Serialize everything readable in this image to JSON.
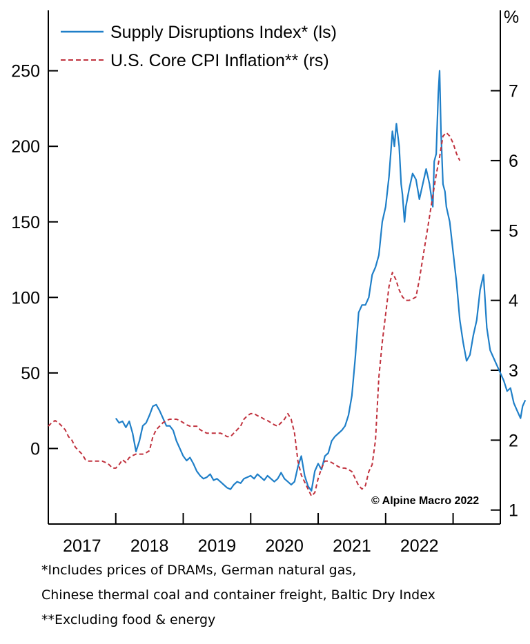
{
  "chart_data": {
    "type": "line",
    "x_ticks": [
      "2017",
      "2018",
      "2019",
      "2020",
      "2021",
      "2022"
    ],
    "y_left": {
      "ticks": [
        "0",
        "50",
        "100",
        "150",
        "200",
        "250"
      ],
      "range": [
        -50,
        290
      ]
    },
    "y_right": {
      "unit": "%",
      "ticks": [
        "1",
        "2",
        "3",
        "4",
        "5",
        "6",
        "7"
      ],
      "range": [
        0.8,
        8.15
      ]
    },
    "series": [
      {
        "name": "Supply Disruptions Index* (ls)",
        "axis": "left",
        "color": "#1f7fc8",
        "style": "solid",
        "points": [
          [
            2017.5,
            20
          ],
          [
            2017.55,
            17
          ],
          [
            2017.6,
            18
          ],
          [
            2017.65,
            14
          ],
          [
            2017.7,
            18
          ],
          [
            2017.75,
            10
          ],
          [
            2017.8,
            -2
          ],
          [
            2017.85,
            5
          ],
          [
            2017.9,
            15
          ],
          [
            2017.95,
            17
          ],
          [
            2018.0,
            22
          ],
          [
            2018.05,
            28
          ],
          [
            2018.1,
            29
          ],
          [
            2018.15,
            25
          ],
          [
            2018.2,
            20
          ],
          [
            2018.25,
            15
          ],
          [
            2018.3,
            15
          ],
          [
            2018.35,
            12
          ],
          [
            2018.4,
            5
          ],
          [
            2018.45,
            0
          ],
          [
            2018.5,
            -5
          ],
          [
            2018.55,
            -8
          ],
          [
            2018.6,
            -6
          ],
          [
            2018.65,
            -10
          ],
          [
            2018.7,
            -15
          ],
          [
            2018.75,
            -18
          ],
          [
            2018.8,
            -20
          ],
          [
            2018.85,
            -19
          ],
          [
            2018.9,
            -17
          ],
          [
            2018.95,
            -21
          ],
          [
            2019.0,
            -20
          ],
          [
            2019.05,
            -22
          ],
          [
            2019.1,
            -24
          ],
          [
            2019.15,
            -26
          ],
          [
            2019.2,
            -27
          ],
          [
            2019.25,
            -24
          ],
          [
            2019.3,
            -22
          ],
          [
            2019.35,
            -23
          ],
          [
            2019.4,
            -20
          ],
          [
            2019.45,
            -19
          ],
          [
            2019.5,
            -18
          ],
          [
            2019.55,
            -20
          ],
          [
            2019.6,
            -17
          ],
          [
            2019.65,
            -19
          ],
          [
            2019.7,
            -21
          ],
          [
            2019.75,
            -18
          ],
          [
            2019.8,
            -20
          ],
          [
            2019.85,
            -22
          ],
          [
            2019.9,
            -20
          ],
          [
            2019.95,
            -16
          ],
          [
            2020.0,
            -20
          ],
          [
            2020.05,
            -22
          ],
          [
            2020.1,
            -24
          ],
          [
            2020.15,
            -22
          ],
          [
            2020.2,
            -12
          ],
          [
            2020.25,
            -5
          ],
          [
            2020.3,
            -18
          ],
          [
            2020.35,
            -25
          ],
          [
            2020.4,
            -28
          ],
          [
            2020.45,
            -15
          ],
          [
            2020.5,
            -10
          ],
          [
            2020.55,
            -14
          ],
          [
            2020.6,
            -5
          ],
          [
            2020.65,
            -3
          ],
          [
            2020.7,
            5
          ],
          [
            2020.75,
            8
          ],
          [
            2020.8,
            10
          ],
          [
            2020.85,
            12
          ],
          [
            2020.9,
            15
          ],
          [
            2020.95,
            22
          ],
          [
            2021.0,
            35
          ],
          [
            2021.05,
            60
          ],
          [
            2021.1,
            90
          ],
          [
            2021.15,
            95
          ],
          [
            2021.2,
            95
          ],
          [
            2021.25,
            100
          ],
          [
            2021.3,
            115
          ],
          [
            2021.35,
            120
          ],
          [
            2021.4,
            128
          ],
          [
            2021.45,
            150
          ],
          [
            2021.5,
            160
          ],
          [
            2021.55,
            180
          ],
          [
            2021.6,
            210
          ],
          [
            2021.63,
            200
          ],
          [
            2021.66,
            215
          ],
          [
            2021.7,
            200
          ],
          [
            2021.73,
            175
          ],
          [
            2021.75,
            168
          ],
          [
            2021.78,
            150
          ],
          [
            2021.8,
            160
          ],
          [
            2021.85,
            172
          ],
          [
            2021.9,
            182
          ],
          [
            2021.95,
            178
          ],
          [
            2022.0,
            165
          ],
          [
            2022.05,
            175
          ],
          [
            2022.1,
            185
          ],
          [
            2022.15,
            175
          ],
          [
            2022.2,
            160
          ],
          [
            2022.22,
            190
          ],
          [
            2022.25,
            195
          ],
          [
            2022.28,
            235
          ],
          [
            2022.3,
            250
          ],
          [
            2022.32,
            210
          ],
          [
            2022.35,
            175
          ],
          [
            2022.38,
            170
          ],
          [
            2022.4,
            160
          ],
          [
            2022.45,
            150
          ],
          [
            2022.5,
            130
          ],
          [
            2022.55,
            110
          ],
          [
            2022.6,
            85
          ],
          [
            2022.65,
            70
          ],
          [
            2022.7,
            58
          ],
          [
            2022.75,
            62
          ],
          [
            2022.8,
            75
          ],
          [
            2022.85,
            85
          ],
          [
            2022.9,
            105
          ],
          [
            2022.95,
            115
          ],
          [
            2023.0,
            80
          ],
          [
            2023.05,
            65
          ],
          [
            2023.1,
            60
          ],
          [
            2023.15,
            55
          ],
          [
            2023.2,
            50
          ],
          [
            2023.25,
            45
          ],
          [
            2023.3,
            38
          ],
          [
            2023.35,
            40
          ],
          [
            2023.4,
            30
          ],
          [
            2023.45,
            25
          ],
          [
            2023.5,
            20
          ],
          [
            2023.53,
            28
          ],
          [
            2023.57,
            32
          ]
        ]
      },
      {
        "name": "U.S. Core CPI Inflation** (rs)",
        "axis": "right",
        "color": "#c0313d",
        "style": "dashed",
        "points": [
          [
            2016.5,
            2.2
          ],
          [
            2016.55,
            2.25
          ],
          [
            2016.6,
            2.28
          ],
          [
            2016.65,
            2.25
          ],
          [
            2016.7,
            2.2
          ],
          [
            2016.75,
            2.15
          ],
          [
            2016.8,
            2.05
          ],
          [
            2016.85,
            2.0
          ],
          [
            2016.9,
            1.9
          ],
          [
            2016.95,
            1.85
          ],
          [
            2017.0,
            1.8
          ],
          [
            2017.05,
            1.72
          ],
          [
            2017.1,
            1.7
          ],
          [
            2017.15,
            1.7
          ],
          [
            2017.2,
            1.7
          ],
          [
            2017.25,
            1.7
          ],
          [
            2017.3,
            1.7
          ],
          [
            2017.35,
            1.68
          ],
          [
            2017.4,
            1.65
          ],
          [
            2017.45,
            1.6
          ],
          [
            2017.5,
            1.6
          ],
          [
            2017.55,
            1.65
          ],
          [
            2017.6,
            1.72
          ],
          [
            2017.65,
            1.68
          ],
          [
            2017.7,
            1.75
          ],
          [
            2017.75,
            1.78
          ],
          [
            2017.8,
            1.8
          ],
          [
            2017.85,
            1.8
          ],
          [
            2017.9,
            1.8
          ],
          [
            2017.95,
            1.82
          ],
          [
            2018.0,
            1.85
          ],
          [
            2018.05,
            2.05
          ],
          [
            2018.1,
            2.15
          ],
          [
            2018.15,
            2.2
          ],
          [
            2018.2,
            2.25
          ],
          [
            2018.25,
            2.28
          ],
          [
            2018.3,
            2.3
          ],
          [
            2018.35,
            2.3
          ],
          [
            2018.4,
            2.3
          ],
          [
            2018.45,
            2.28
          ],
          [
            2018.5,
            2.25
          ],
          [
            2018.55,
            2.22
          ],
          [
            2018.6,
            2.2
          ],
          [
            2018.65,
            2.2
          ],
          [
            2018.7,
            2.2
          ],
          [
            2018.75,
            2.15
          ],
          [
            2018.8,
            2.12
          ],
          [
            2018.85,
            2.1
          ],
          [
            2018.9,
            2.1
          ],
          [
            2018.95,
            2.1
          ],
          [
            2019.0,
            2.1
          ],
          [
            2019.05,
            2.1
          ],
          [
            2019.1,
            2.08
          ],
          [
            2019.15,
            2.05
          ],
          [
            2019.2,
            2.05
          ],
          [
            2019.25,
            2.1
          ],
          [
            2019.3,
            2.15
          ],
          [
            2019.35,
            2.2
          ],
          [
            2019.4,
            2.3
          ],
          [
            2019.45,
            2.35
          ],
          [
            2019.5,
            2.38
          ],
          [
            2019.55,
            2.38
          ],
          [
            2019.6,
            2.35
          ],
          [
            2019.65,
            2.33
          ],
          [
            2019.7,
            2.3
          ],
          [
            2019.75,
            2.28
          ],
          [
            2019.8,
            2.25
          ],
          [
            2019.85,
            2.22
          ],
          [
            2019.9,
            2.2
          ],
          [
            2019.95,
            2.25
          ],
          [
            2020.0,
            2.3
          ],
          [
            2020.05,
            2.38
          ],
          [
            2020.1,
            2.3
          ],
          [
            2020.15,
            2.1
          ],
          [
            2020.2,
            1.7
          ],
          [
            2020.25,
            1.5
          ],
          [
            2020.3,
            1.4
          ],
          [
            2020.35,
            1.3
          ],
          [
            2020.4,
            1.2
          ],
          [
            2020.45,
            1.25
          ],
          [
            2020.5,
            1.45
          ],
          [
            2020.55,
            1.6
          ],
          [
            2020.6,
            1.7
          ],
          [
            2020.65,
            1.7
          ],
          [
            2020.7,
            1.68
          ],
          [
            2020.75,
            1.65
          ],
          [
            2020.8,
            1.62
          ],
          [
            2020.85,
            1.6
          ],
          [
            2020.9,
            1.6
          ],
          [
            2020.95,
            1.58
          ],
          [
            2021.0,
            1.55
          ],
          [
            2021.05,
            1.45
          ],
          [
            2021.1,
            1.35
          ],
          [
            2021.15,
            1.3
          ],
          [
            2021.2,
            1.35
          ],
          [
            2021.25,
            1.55
          ],
          [
            2021.3,
            1.65
          ],
          [
            2021.35,
            2.0
          ],
          [
            2021.4,
            2.9
          ],
          [
            2021.45,
            3.4
          ],
          [
            2021.5,
            3.8
          ],
          [
            2021.55,
            4.2
          ],
          [
            2021.6,
            4.4
          ],
          [
            2021.65,
            4.3
          ],
          [
            2021.7,
            4.15
          ],
          [
            2021.75,
            4.05
          ],
          [
            2021.8,
            4.0
          ],
          [
            2021.85,
            4.0
          ],
          [
            2021.9,
            4.02
          ],
          [
            2021.95,
            4.05
          ],
          [
            2022.0,
            4.3
          ],
          [
            2022.05,
            4.6
          ],
          [
            2022.1,
            4.9
          ],
          [
            2022.15,
            5.2
          ],
          [
            2022.2,
            5.5
          ],
          [
            2022.25,
            5.8
          ],
          [
            2022.3,
            6.05
          ],
          [
            2022.35,
            6.35
          ],
          [
            2022.4,
            6.4
          ],
          [
            2022.45,
            6.35
          ],
          [
            2022.5,
            6.25
          ],
          [
            2022.55,
            6.1
          ],
          [
            2022.6,
            6.0
          ]
        ]
      }
    ]
  },
  "legend": {
    "items": [
      {
        "label": "Supply Disruptions Index* (ls)",
        "color": "#1f7fc8",
        "style": "solid"
      },
      {
        "label": "U.S. Core CPI Inflation** (rs)",
        "color": "#c0313d",
        "style": "dashed"
      }
    ]
  },
  "copyright": "© Alpine Macro 2022",
  "footnotes": [
    "*Includes prices of DRAMs, German natural gas,",
    "Chinese thermal coal and container freight, Baltic Dry Index",
    "**Excluding food & energy"
  ]
}
